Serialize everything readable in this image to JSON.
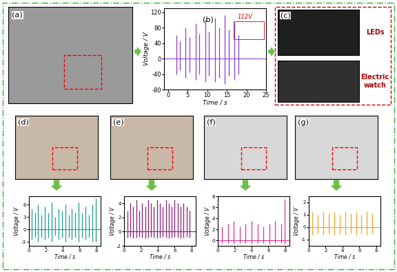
{
  "panel_labels": [
    "(a)",
    "(b)",
    "(c)",
    "(d)",
    "(e)",
    "(f)",
    "(g)"
  ],
  "photo_texts": {
    "leds": "LEDs",
    "watch": "Electric watch"
  },
  "chart_data": [
    {
      "type": "spike",
      "panel": "(b)",
      "xlabel": "Time / s",
      "ylabel": "Voltage / V",
      "color": "#8a3fc4",
      "annotation": "112V",
      "baseline": 0,
      "x": [
        2.2,
        3.0,
        4.5,
        5.5,
        7.0,
        8.0,
        9.5,
        10.5,
        12.0,
        13.0,
        14.5,
        15.5,
        17.0,
        18.0
      ],
      "peaks": [
        60,
        45,
        80,
        55,
        90,
        65,
        100,
        70,
        105,
        80,
        112,
        75,
        95,
        60
      ],
      "troughs": [
        -40,
        -30,
        -50,
        -35,
        -55,
        -40,
        -60,
        -45,
        -60,
        -50,
        -65,
        -45,
        -55,
        -40
      ],
      "xlim": [
        -1,
        25
      ],
      "xticks": [
        0,
        5,
        10,
        15,
        20,
        25
      ],
      "ylim": [
        -80,
        130
      ],
      "yticks": [
        -80,
        -40,
        0,
        40,
        80,
        120
      ]
    },
    {
      "type": "spike",
      "panel": "(d)",
      "xlabel": "Time / s",
      "ylabel": "Voltage / V",
      "color": "#1a9e8f",
      "baseline": 0,
      "x": [
        0.3,
        0.7,
        1.1,
        1.5,
        1.9,
        2.3,
        2.7,
        3.1,
        3.5,
        3.9,
        4.3,
        4.7,
        5.1,
        5.5,
        5.9,
        6.3,
        6.7,
        7.1,
        7.5,
        7.9
      ],
      "peaks": [
        5,
        4,
        6,
        3.5,
        5.5,
        4,
        6.5,
        3,
        5,
        4.5,
        6,
        3.5,
        5,
        4,
        6.5,
        4,
        5.5,
        3.5,
        6,
        7.5
      ],
      "troughs": [
        -2.5,
        -2,
        -3,
        -2,
        -2.5,
        -2,
        -3,
        -1.5,
        -2.5,
        -2,
        -3,
        -2,
        -2.5,
        -2,
        -3,
        -2,
        -2.5,
        -2,
        -3,
        -3
      ],
      "xlim": [
        0,
        8.5
      ],
      "xticks": [
        0,
        2,
        4,
        6,
        8
      ],
      "ylim": [
        -4,
        8
      ],
      "yticks": [
        -3,
        0,
        3,
        6
      ]
    },
    {
      "type": "spike",
      "panel": "(e)",
      "xlabel": "Time / s",
      "ylabel": "Voltage / V",
      "color": "#8b1a7a",
      "baseline": 0,
      "x": [
        0.4,
        0.75,
        1.1,
        1.45,
        1.8,
        2.15,
        2.5,
        2.85,
        3.2,
        3.55,
        3.9,
        4.25,
        4.6,
        4.95,
        5.3,
        5.65,
        6.0,
        6.35,
        6.7,
        7.05,
        7.4,
        7.75
      ],
      "peaks": [
        3,
        4,
        3.5,
        4.5,
        3,
        4,
        3.5,
        4.5,
        4,
        3.5,
        4.5,
        4,
        3.5,
        4.5,
        4,
        3.5,
        4.5,
        4,
        3.5,
        4,
        3.5,
        3
      ],
      "troughs": [
        -0.8,
        -0.7,
        -0.9,
        -0.8,
        -0.7,
        -0.8,
        -0.9,
        -0.8,
        -0.7,
        -0.8,
        -0.9,
        -0.8,
        -0.7,
        -0.8,
        -0.9,
        -0.8,
        -0.7,
        -0.8,
        -0.9,
        -0.8,
        -0.7,
        -0.8
      ],
      "xlim": [
        0,
        8.5
      ],
      "xticks": [
        0,
        2,
        4,
        6,
        8
      ],
      "ylim": [
        -2,
        5
      ],
      "yticks": [
        -2,
        0,
        2,
        4
      ]
    },
    {
      "type": "spike",
      "panel": "(f)",
      "xlabel": "Time / s",
      "ylabel": "Voltage / V",
      "color": "#e0318b",
      "baseline": 0,
      "x": [
        0.5,
        1.2,
        1.9,
        2.6,
        3.3,
        4.0,
        4.7,
        5.4,
        6.1,
        6.8,
        7.5,
        7.9
      ],
      "peaks": [
        2.5,
        3,
        3.5,
        2.5,
        3,
        3.5,
        3,
        2.5,
        3,
        3.5,
        3,
        7.5
      ],
      "troughs": [
        -0.5,
        -0.5,
        -0.6,
        -0.5,
        -0.5,
        -0.6,
        -0.5,
        -0.5,
        -0.6,
        -0.5,
        -0.5,
        -0.6
      ],
      "xlim": [
        0,
        8.5
      ],
      "xticks": [
        0,
        2,
        4,
        6,
        8
      ],
      "ylim": [
        -1,
        8
      ],
      "yticks": [
        0,
        2,
        4,
        6,
        8
      ]
    },
    {
      "type": "spike",
      "panel": "(g)",
      "xlabel": "Time / s",
      "ylabel": "Voltage / V",
      "color": "#f4a020",
      "baseline": 0,
      "x": [
        0.4,
        1.05,
        1.7,
        2.35,
        3.0,
        3.65,
        4.3,
        4.95,
        5.6,
        6.25,
        6.9,
        7.55
      ],
      "peaks": [
        1.2,
        1,
        1.3,
        1.1,
        1.2,
        1,
        1.3,
        1.1,
        1.2,
        1,
        1.3,
        1.1
      ],
      "troughs": [
        -0.6,
        -0.5,
        -0.6,
        -0.5,
        -0.6,
        -0.5,
        -0.6,
        -0.5,
        -0.6,
        -0.5,
        -0.6,
        -0.5
      ],
      "xlim": [
        0,
        8.5
      ],
      "xticks": [
        0,
        2,
        4,
        6,
        8
      ],
      "ylim": [
        -1.5,
        2.5
      ],
      "yticks": [
        -1,
        0,
        1,
        2
      ]
    }
  ]
}
